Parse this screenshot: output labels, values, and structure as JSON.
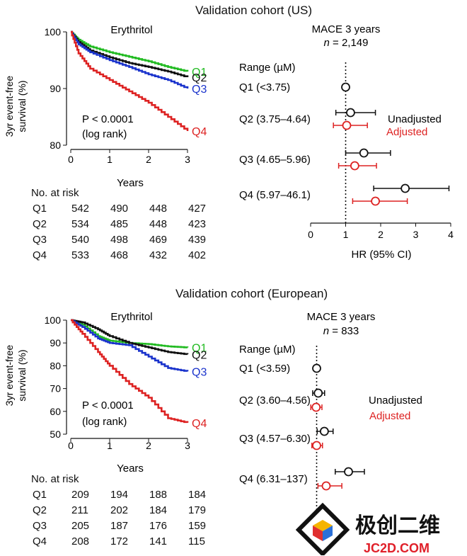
{
  "panels": [
    {
      "title": "Validation cohort (US)",
      "km": {
        "chart_data": {
          "type": "line",
          "title": "Erythritol",
          "xlabel": "Years",
          "ylabel": "3yr event-free survival (%)",
          "xlim": [
            0,
            3
          ],
          "ylim": [
            80,
            100
          ],
          "xticks": [
            0,
            1,
            2,
            3
          ],
          "yticks": [
            80,
            90,
            100
          ],
          "annotation": [
            "P < 0.0001",
            "(log rank)"
          ],
          "series": [
            {
              "name": "Q1",
              "color": "#22bb22",
              "x": [
                0,
                0.2,
                0.5,
                1,
                1.5,
                2,
                2.5,
                3
              ],
              "y": [
                100,
                98.6,
                97.4,
                96.4,
                95.6,
                94.8,
                93.8,
                93.0
              ]
            },
            {
              "name": "Q2",
              "color": "#111111",
              "x": [
                0,
                0.2,
                0.5,
                1,
                1.5,
                2,
                2.5,
                3
              ],
              "y": [
                100,
                98.2,
                96.7,
                95.5,
                94.5,
                93.8,
                93.0,
                92.0
              ]
            },
            {
              "name": "Q3",
              "color": "#1a33cc",
              "x": [
                0,
                0.2,
                0.5,
                1,
                1.5,
                2,
                2.5,
                3
              ],
              "y": [
                100,
                97.8,
                96.4,
                95.0,
                93.8,
                92.5,
                91.5,
                90.0
              ]
            },
            {
              "name": "Q4",
              "color": "#dd2222",
              "x": [
                0,
                0.2,
                0.5,
                1,
                1.5,
                2,
                2.5,
                3
              ],
              "y": [
                100,
                96.2,
                93.5,
                91.5,
                89.5,
                87.5,
                85.0,
                82.5
              ]
            }
          ]
        },
        "risk": {
          "header": "No. at risk",
          "rows": [
            {
              "label": "Q1",
              "values": [
                "542",
                "490",
                "448",
                "427"
              ]
            },
            {
              "label": "Q2",
              "values": [
                "534",
                "485",
                "448",
                "423"
              ]
            },
            {
              "label": "Q3",
              "values": [
                "540",
                "498",
                "469",
                "439"
              ]
            },
            {
              "label": "Q4",
              "values": [
                "533",
                "468",
                "432",
                "402"
              ]
            }
          ]
        }
      },
      "forest": {
        "chart_data": {
          "type": "forest",
          "title": "MACE 3 years",
          "n_prefix": "n",
          "n_value": " = 2,149",
          "range_header": "Range (µM)",
          "xlabel": "HR (95% CI)",
          "xlim": [
            0,
            4
          ],
          "xticks": [
            0,
            1,
            2,
            3,
            4
          ],
          "reference_line": 1,
          "legend": [
            {
              "name": "Unadjusted",
              "color": "#111111"
            },
            {
              "name": "Adjusted",
              "color": "#dd2222"
            }
          ],
          "rows": [
            {
              "label": "Q1 (<3.75)",
              "reference": 1.0
            },
            {
              "label": "Q2 (3.75–4.64)",
              "unadjusted": [
                1.14,
                0.72,
                1.85
              ],
              "adjusted": [
                1.03,
                0.65,
                1.62
              ]
            },
            {
              "label": "Q3 (4.65–5.96)",
              "unadjusted": [
                1.52,
                1.0,
                2.28
              ],
              "adjusted": [
                1.26,
                0.8,
                1.88
              ]
            },
            {
              "label": "Q4 (5.97–46.1)",
              "unadjusted": [
                2.7,
                1.8,
                3.95
              ],
              "adjusted": [
                1.85,
                1.2,
                2.76
              ]
            }
          ]
        }
      }
    },
    {
      "title": "Validation cohort (European)",
      "km": {
        "chart_data": {
          "type": "line",
          "title": "Erythritol",
          "xlabel": "Years",
          "ylabel": "3yr event-free survival (%)",
          "xlim": [
            0,
            3
          ],
          "ylim": [
            50,
            100
          ],
          "xticks": [
            0,
            1,
            2,
            3
          ],
          "yticks": [
            50,
            60,
            70,
            80,
            90,
            100
          ],
          "annotation": [
            "P < 0.0001",
            "(log rank)"
          ],
          "series": [
            {
              "name": "Q1",
              "color": "#22bb22",
              "x": [
                0,
                0.3,
                0.7,
                1,
                1.5,
                2,
                2.5,
                3
              ],
              "y": [
                100,
                98,
                93,
                91,
                90,
                89.5,
                88.5,
                88
              ]
            },
            {
              "name": "Q2",
              "color": "#111111",
              "x": [
                0,
                0.3,
                0.7,
                1,
                1.5,
                2,
                2.5,
                3
              ],
              "y": [
                100,
                99,
                96,
                93,
                90,
                88,
                86,
                85
              ]
            },
            {
              "name": "Q3",
              "color": "#1a33cc",
              "x": [
                0,
                0.3,
                0.7,
                1,
                1.5,
                2,
                2.5,
                3
              ],
              "y": [
                100,
                97,
                92,
                90,
                89,
                84,
                79,
                77.5
              ]
            },
            {
              "name": "Q4",
              "color": "#dd2222",
              "x": [
                0,
                0.3,
                0.7,
                1,
                1.5,
                2,
                2.5,
                3
              ],
              "y": [
                100,
                94,
                86,
                80,
                72,
                66,
                57,
                55
              ]
            }
          ]
        },
        "risk": {
          "header": "No. at risk",
          "rows": [
            {
              "label": "Q1",
              "values": [
                "209",
                "194",
                "188",
                "184"
              ]
            },
            {
              "label": "Q2",
              "values": [
                "211",
                "202",
                "184",
                "179"
              ]
            },
            {
              "label": "Q3",
              "values": [
                "205",
                "187",
                "176",
                "159"
              ]
            },
            {
              "label": "Q4",
              "values": [
                "208",
                "172",
                "141",
                "115"
              ]
            }
          ]
        }
      },
      "forest": {
        "chart_data": {
          "type": "forest",
          "title": "MACE 3 years",
          "n_prefix": "n",
          "n_value": " = 833",
          "range_header": "Range (µM)",
          "xlabel": "",
          "xlim": [
            0,
            4
          ],
          "xticks": [],
          "reference_line": 1,
          "legend": [
            {
              "name": "Unadjusted",
              "color": "#111111"
            },
            {
              "name": "Adjusted",
              "color": "#dd2222"
            }
          ],
          "rows": [
            {
              "label": "Q1 (<3.59)",
              "reference": 1.0
            },
            {
              "label": "Q2 (3.60–4.56)",
              "unadjusted": [
                1.06,
                0.85,
                1.3
              ],
              "adjusted": [
                0.98,
                0.78,
                1.2
              ]
            },
            {
              "label": "Q3 (4.57–6.30)",
              "unadjusted": [
                1.29,
                1.02,
                1.62
              ],
              "adjusted": [
                1.0,
                0.82,
                1.22
              ]
            },
            {
              "label": "Q4 (6.31–137)",
              "unadjusted": [
                2.2,
                1.7,
                2.8
              ],
              "adjusted": [
                1.36,
                1.05,
                1.95
              ]
            }
          ]
        }
      }
    }
  ],
  "watermark": {
    "brand": "极创二维",
    "site": "JC2D.COM"
  }
}
